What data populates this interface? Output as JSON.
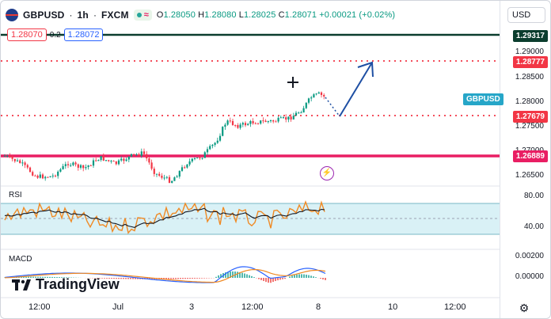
{
  "header": {
    "symbol": "GBPUSD",
    "interval": "1h",
    "exchange": "FXCM",
    "ohlc": {
      "o_label": "O",
      "o": "1.28050",
      "h_label": "H",
      "h": "1.28080",
      "l_label": "L",
      "l": "1.28025",
      "c_label": "C",
      "c": "1.28071",
      "change": "+0.00021 (+0.02%)"
    },
    "sell_price": "1.28070",
    "spread": "0.2",
    "buy_price": "1.28072",
    "currency": "USD"
  },
  "price_axis": {
    "ticks": [
      "1.29000",
      "1.28500",
      "1.28000",
      "1.27500",
      "1.27000",
      "1.26500"
    ],
    "labels": [
      {
        "text": "1.29317",
        "color": "#131722"
      },
      {
        "text": "1.28777",
        "color": "#f23645"
      },
      {
        "text": "1.27679",
        "color": "#f23645"
      },
      {
        "text": "1.26889",
        "color": "#f23645"
      }
    ],
    "series_label": "GBPUSD"
  },
  "rsi": {
    "title": "RSI",
    "ticks": [
      "80.00",
      "40.00"
    ]
  },
  "macd": {
    "title": "MACD",
    "ticks": [
      "0.00200",
      "0.00000"
    ]
  },
  "time_axis": {
    "labels": [
      "12:00",
      "Jul",
      "3",
      "12:00",
      "8",
      "10",
      "12:00"
    ]
  },
  "watermark": {
    "text": "TradingView"
  },
  "colors": {
    "candle_up": "#089981",
    "candle_down": "#f23645",
    "resistance_top": "#0b3d2e",
    "support": "#e91e63",
    "dotted": "#f23645",
    "arrow": "#1e4fa3",
    "rsi_fast": "#f08a24",
    "rsi_slow": "#131722",
    "rsi_band": "#d9f1f6"
  },
  "icons": [
    "flag-gbpusd-icon",
    "equals-icon",
    "crosshair-icon",
    "lightning-icon",
    "settings-gear-icon",
    "tradingview-logo-icon"
  ]
}
